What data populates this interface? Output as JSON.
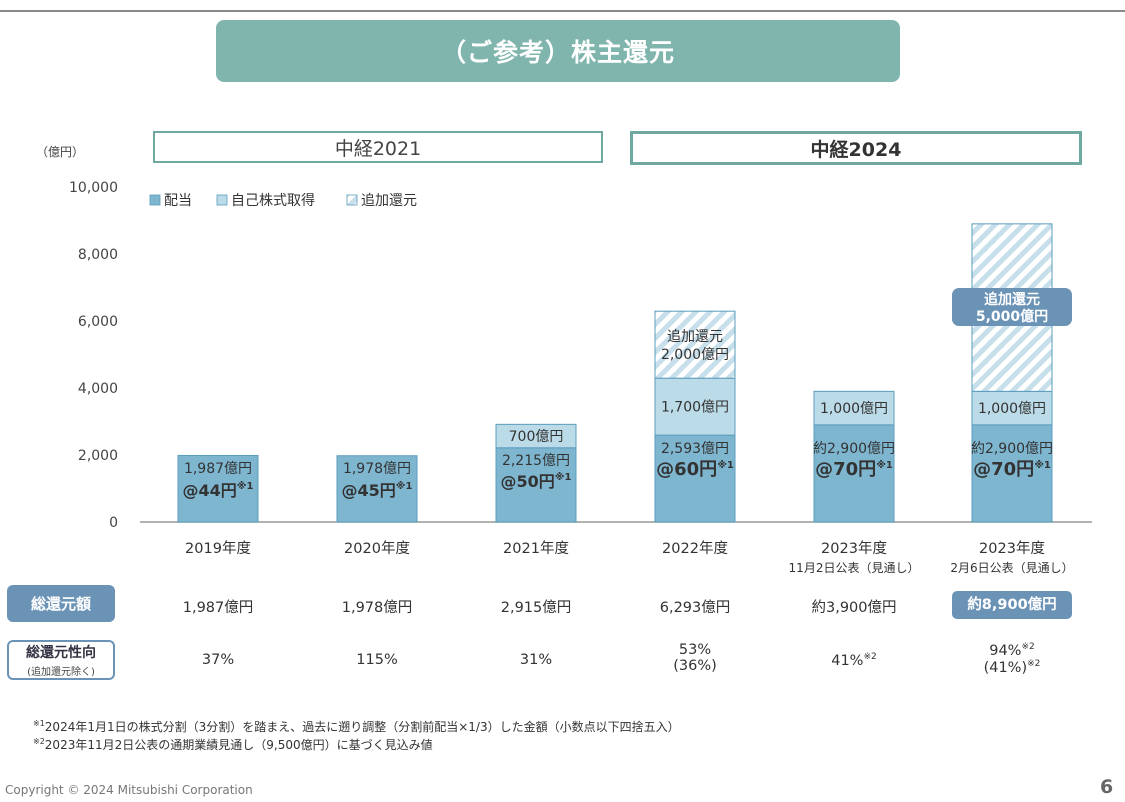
{
  "title": "（ご参考）株主還元",
  "periods": [
    {
      "label": "中経2021"
    },
    {
      "label": "中経2024"
    }
  ],
  "chart_data": {
    "type": "bar",
    "stacked": true,
    "unit_label": "（億円）",
    "ylim": [
      0,
      10000
    ],
    "yticks": [
      "0",
      "2,000",
      "4,000",
      "6,000",
      "8,000",
      "10,000"
    ],
    "ytick_values": [
      0,
      2000,
      4000,
      6000,
      8000,
      10000
    ],
    "legend": [
      {
        "name": "配当",
        "style": "solid",
        "color": "#7eb6d0"
      },
      {
        "name": "自己株式取得",
        "style": "light",
        "color": "#bcdbe8"
      },
      {
        "name": "追加還元",
        "style": "hatch",
        "color": "#bcdbe8"
      }
    ],
    "categories": [
      {
        "label": "2019年度",
        "sub": ""
      },
      {
        "label": "2020年度",
        "sub": ""
      },
      {
        "label": "2021年度",
        "sub": ""
      },
      {
        "label": "2022年度",
        "sub": ""
      },
      {
        "label": "2023年度",
        "sub": "11月2日公表（見通し）"
      },
      {
        "label": "2023年度",
        "sub": "2月6日公表（見通し）"
      }
    ],
    "series": [
      {
        "name": "配当",
        "values": [
          1987,
          1978,
          2215,
          2593,
          2900,
          2900
        ]
      },
      {
        "name": "自己株式取得",
        "values": [
          0,
          0,
          700,
          1700,
          1000,
          1000
        ]
      },
      {
        "name": "追加還元",
        "values": [
          0,
          0,
          0,
          2000,
          0,
          5000
        ]
      }
    ],
    "dividend_labels": [
      "1,987億円",
      "1,978億円",
      "2,215億円",
      "2,593億円",
      "約2,900億円",
      "約2,900億円"
    ],
    "per_share_labels": [
      "@44円",
      "@45円",
      "@50円",
      "@60円",
      "@70円",
      "@70円"
    ],
    "per_share_mark": "※1",
    "buyback_labels": [
      "",
      "",
      "700億円",
      "1,700億円",
      "1,000億円",
      "1,000億円"
    ],
    "additional_labels": [
      {
        "line1": "",
        "line2": ""
      },
      {
        "line1": "",
        "line2": ""
      },
      {
        "line1": "",
        "line2": ""
      },
      {
        "line1": "追加還元",
        "line2": "2,000億円"
      },
      {
        "line1": "",
        "line2": ""
      },
      {
        "line1": "追加還元",
        "line2": "5,000億円"
      }
    ]
  },
  "rows": {
    "total_label": "総還元額",
    "total_values": [
      "1,987億円",
      "1,978億円",
      "2,915億円",
      "6,293億円",
      "約3,900億円",
      "約8,900億円"
    ],
    "ratio_label": "総還元性向",
    "ratio_sublabel": "(追加還元除く)",
    "ratio_values": [
      {
        "line1": "37%",
        "mark1": "",
        "line2": "",
        "mark2": ""
      },
      {
        "line1": "115%",
        "mark1": "",
        "line2": "",
        "mark2": ""
      },
      {
        "line1": "31%",
        "mark1": "",
        "line2": "",
        "mark2": ""
      },
      {
        "line1": "53%",
        "mark1": "",
        "line2": "(36%)",
        "mark2": ""
      },
      {
        "line1": "41%",
        "mark1": "※2",
        "line2": "",
        "mark2": ""
      },
      {
        "line1": "94%",
        "mark1": "※2",
        "line2": "(41%)",
        "mark2": "※2"
      }
    ]
  },
  "notes": [
    {
      "mark": "※1",
      "text": "2024年1月1日の株式分割（3分割）を踏まえ、過去に遡り調整（分割前配当×1/3）した金額（小数点以下四捨五入）"
    },
    {
      "mark": "※2",
      "text": "2023年11月2日公表の通期業績見通し（9,500億円）に基づく見込み値"
    }
  ],
  "footer": {
    "copyright": "Copyright © 2024 Mitsubishi Corporation",
    "page": "6"
  },
  "colors": {
    "dividend": "#7eb6d0",
    "dividend_border": "#5b9cbc",
    "buyback": "#bcdbe8",
    "hatch_stripe": "#c6dfea",
    "accent_teal": "#7fb5ad",
    "accent_blue": "#6b93b6"
  }
}
